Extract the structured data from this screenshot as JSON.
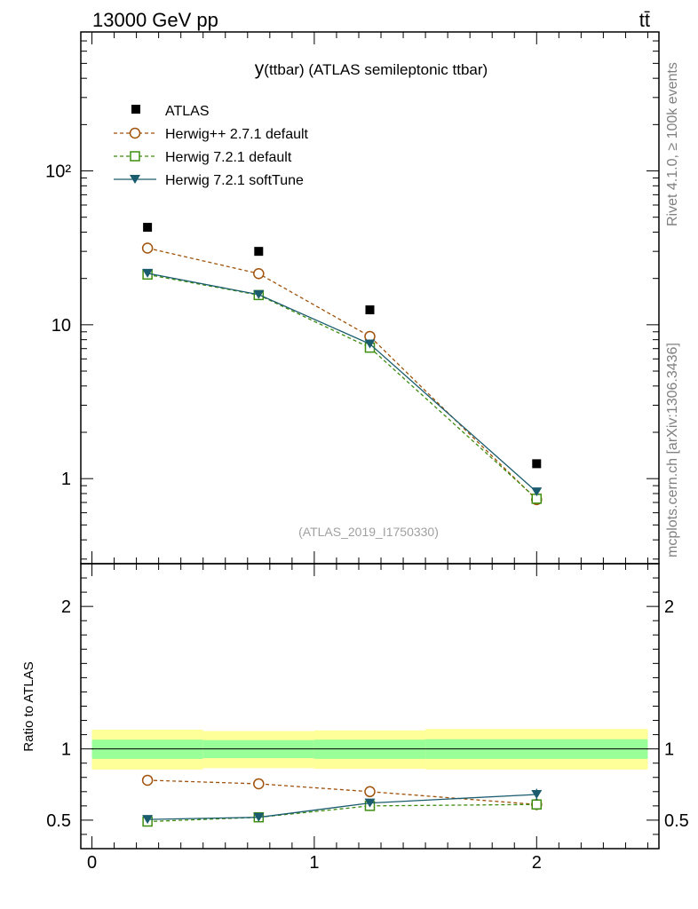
{
  "header": {
    "left_label": "13000 GeV pp",
    "right_label": "tt̄"
  },
  "side": {
    "rivet_label": "Rivet 4.1.0, ≥ 100k events",
    "source_label": "mcplots.cern.ch [arXiv:1306.3436]"
  },
  "chart_data": [
    {
      "type": "scatter",
      "title": "y(ttbar) (ATLAS semileptonic ttbar)",
      "title_prefix": "y",
      "title_rest": "(ttbar) (ATLAS semileptonic ttbar)",
      "watermark": "(ATLAS_2019_I1750330)",
      "xlabel": "",
      "ylabel": "",
      "yscale": "log",
      "xlim": [
        -0.05,
        2.55
      ],
      "ylim": [
        0.28,
        800
      ],
      "ytick_labels": [
        "1",
        "10",
        "10²"
      ],
      "x": [
        0.25,
        0.75,
        1.25,
        2.0
      ],
      "xerr": [
        0.25,
        0.25,
        0.25,
        0.5
      ],
      "series": [
        {
          "name": "ATLAS",
          "marker": "filled-square",
          "color": "#000000",
          "linestyle": "none",
          "values": [
            43,
            30,
            12.5,
            1.25
          ]
        },
        {
          "name": "Herwig++ 2.7.1 default",
          "marker": "open-circle",
          "color": "#a0520a",
          "linestyle": "dashed",
          "values": [
            31.5,
            21.5,
            8.4,
            0.73
          ]
        },
        {
          "name": "Herwig 7.2.1 default",
          "marker": "open-square",
          "color": "#3d8d0e",
          "linestyle": "dashed",
          "values": [
            21.2,
            15.6,
            7.1,
            0.74
          ]
        },
        {
          "name": "Herwig 7.2.1 softTune",
          "marker": "filled-triangle-down",
          "color": "#1a5c6e",
          "linestyle": "solid",
          "values": [
            21.6,
            15.7,
            7.5,
            0.82
          ]
        }
      ]
    },
    {
      "type": "scatter",
      "title": "",
      "xlabel": "",
      "ylabel": "Ratio to ATLAS",
      "xlim": [
        -0.05,
        2.55
      ],
      "ylim": [
        0.3,
        2.3
      ],
      "ytick_labels": [
        "0.5",
        "1",
        "2"
      ],
      "xtick_labels": [
        "0",
        "1",
        "2"
      ],
      "bands": {
        "bins": [
          [
            0,
            0.5
          ],
          [
            0.5,
            1.0
          ],
          [
            1.0,
            1.5
          ],
          [
            1.5,
            2.5
          ]
        ],
        "yellow": [
          [
            0.855,
            1.135
          ],
          [
            0.865,
            1.125
          ],
          [
            0.86,
            1.13
          ],
          [
            0.855,
            1.14
          ]
        ],
        "green": [
          [
            0.93,
            1.065
          ],
          [
            0.935,
            1.062
          ],
          [
            0.93,
            1.065
          ],
          [
            0.93,
            1.068
          ]
        ],
        "yellow_color": "#ffff99",
        "green_color": "#99ff99"
      },
      "x": [
        0.25,
        0.75,
        1.25,
        2.0
      ],
      "series": [
        {
          "name": "Herwig++ 2.7.1 default",
          "marker": "open-circle",
          "color": "#a0520a",
          "linestyle": "dashed",
          "values": [
            0.78,
            0.755,
            0.7,
            0.61
          ]
        },
        {
          "name": "Herwig 7.2.1 default",
          "marker": "open-square",
          "color": "#3d8d0e",
          "linestyle": "dashed",
          "values": [
            0.49,
            0.52,
            0.6,
            0.61
          ],
          "errors": [
            0,
            0,
            0,
            0.04
          ]
        },
        {
          "name": "Herwig 7.2.1 softTune",
          "marker": "filled-triangle-down",
          "color": "#1a5c6e",
          "linestyle": "solid",
          "values": [
            0.505,
            0.52,
            0.62,
            0.68
          ],
          "errors": [
            0,
            0,
            0,
            0.04
          ]
        }
      ]
    }
  ]
}
